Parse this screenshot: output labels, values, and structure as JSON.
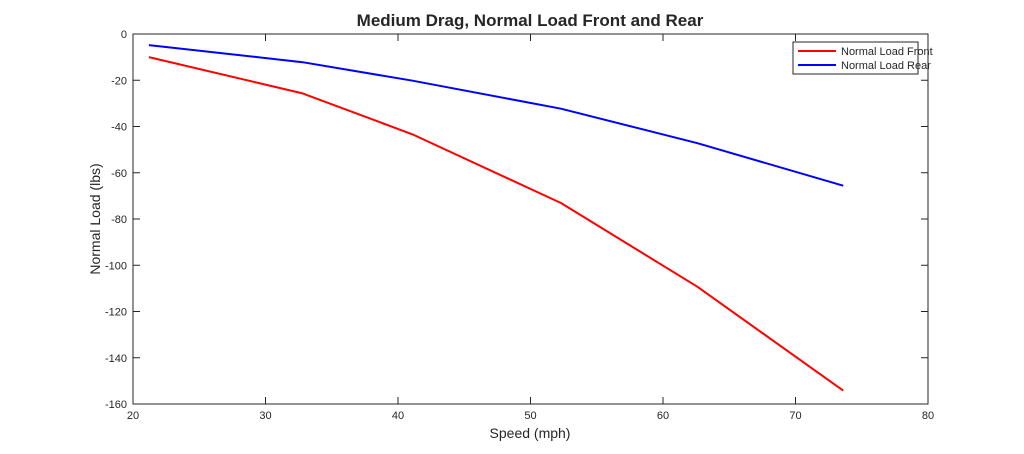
{
  "chart_data": {
    "type": "line",
    "title": "Medium Drag, Normal Load Front and Rear",
    "xlabel": "Speed (mph)",
    "ylabel": "Normal Load (lbs)",
    "xlim": [
      20,
      80
    ],
    "ylim": [
      -160,
      0
    ],
    "xticks": [
      20,
      30,
      40,
      50,
      60,
      70,
      80
    ],
    "yticks": [
      0,
      -20,
      -40,
      -60,
      -80,
      -100,
      -120,
      -140,
      -160
    ],
    "grid": false,
    "legend_position": "top-right",
    "series": [
      {
        "name": "Normal Load Front",
        "color": "#ff0000",
        "x": [
          21.2,
          32.8,
          41.1,
          52.3,
          62.6,
          73.6
        ],
        "y": [
          -10,
          -25.7,
          -43.4,
          -73.1,
          -109.3,
          -154.2
        ]
      },
      {
        "name": "Normal Load Rear",
        "color": "#0000ff",
        "x": [
          21.2,
          32.8,
          41.1,
          52.3,
          62.6,
          73.6
        ],
        "y": [
          -4.8,
          -12.2,
          -20.2,
          -32.3,
          -47.2,
          -65.6
        ]
      }
    ]
  }
}
